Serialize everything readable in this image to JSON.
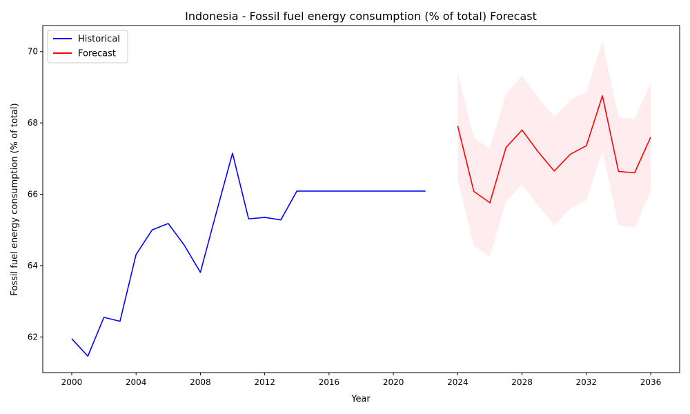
{
  "chart_data": {
    "type": "line",
    "title": "Indonesia - Fossil fuel energy consumption (% of total) Forecast",
    "xlabel": "Year",
    "ylabel": "Fossil fuel energy consumption (% of total)",
    "xlim": [
      1998.2,
      2037.8
    ],
    "ylim": [
      61.0,
      70.73
    ],
    "x_ticks": [
      2000,
      2004,
      2008,
      2012,
      2016,
      2020,
      2024,
      2028,
      2032,
      2036
    ],
    "y_ticks": [
      62,
      64,
      66,
      68,
      70
    ],
    "legend_position": "top-left",
    "grid": false,
    "series": [
      {
        "name": "Historical",
        "color": "#0000ff",
        "x": [
          2000,
          2001,
          2002,
          2003,
          2004,
          2005,
          2006,
          2007,
          2008,
          2009,
          2010,
          2011,
          2012,
          2013,
          2014,
          2015,
          2016,
          2017,
          2018,
          2019,
          2020,
          2021,
          2022
        ],
        "y": [
          61.95,
          61.46,
          62.55,
          62.44,
          64.31,
          65.0,
          65.18,
          64.57,
          63.81,
          65.5,
          67.15,
          65.31,
          65.35,
          65.28,
          66.09,
          66.09,
          66.09,
          66.09,
          66.09,
          66.09,
          66.09,
          66.09,
          66.09
        ]
      },
      {
        "name": "Forecast",
        "color": "#ff0000",
        "x": [
          2024,
          2025,
          2026,
          2027,
          2028,
          2029,
          2030,
          2031,
          2032,
          2033,
          2034,
          2035,
          2036
        ],
        "y": [
          67.92,
          66.08,
          65.76,
          67.31,
          67.8,
          67.19,
          66.65,
          67.12,
          67.36,
          68.76,
          66.64,
          66.6,
          67.6
        ],
        "lower": [
          66.42,
          64.55,
          64.25,
          65.8,
          66.27,
          65.69,
          65.12,
          65.6,
          65.84,
          67.2,
          65.12,
          65.07,
          66.07
        ],
        "upper": [
          69.43,
          67.58,
          67.28,
          68.82,
          69.33,
          68.72,
          68.17,
          68.64,
          68.87,
          70.28,
          68.15,
          68.11,
          69.11
        ],
        "band_color": "#ffc0cb"
      }
    ]
  }
}
